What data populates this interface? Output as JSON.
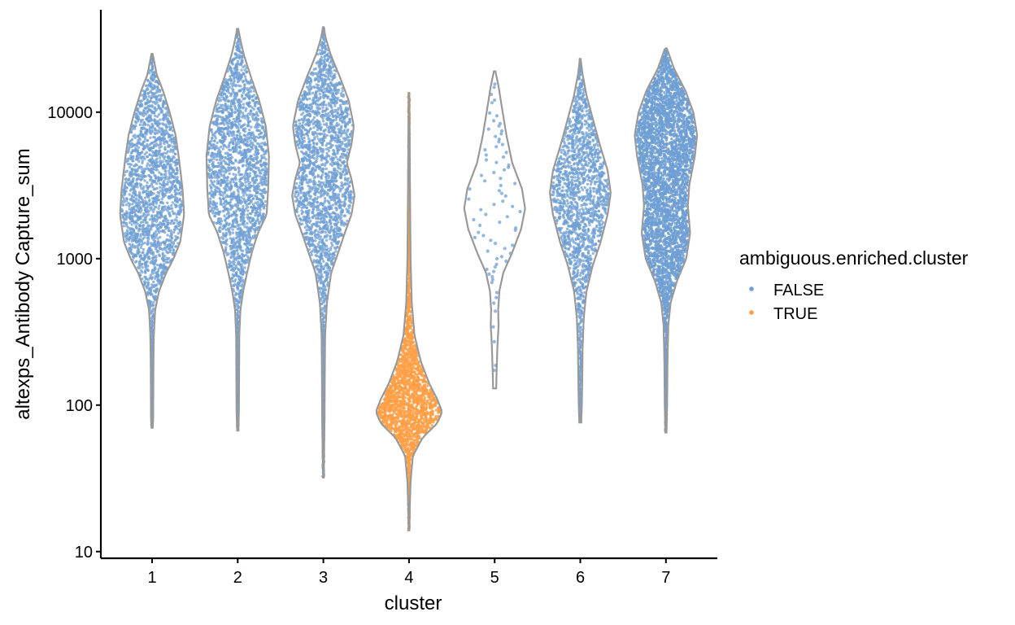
{
  "chart_data": {
    "type": "violin",
    "xlabel": "cluster",
    "ylabel": "altexps_Antibody Capture_sum",
    "y_scale": "log10",
    "ylim": [
      9,
      50000
    ],
    "y_ticks": [
      10,
      100,
      1000,
      10000
    ],
    "y_tick_labels": [
      "10",
      "100",
      "1000",
      "10000"
    ],
    "categories": [
      "1",
      "2",
      "3",
      "4",
      "5",
      "6",
      "7"
    ],
    "legend": {
      "title": "ambiguous.enriched.cluster",
      "placement": "right",
      "entries": [
        {
          "label": "FALSE",
          "color": "#6f9fd4"
        },
        {
          "label": "TRUE",
          "color": "#ff9f45"
        }
      ]
    },
    "violins": [
      {
        "cluster": "1",
        "group": "FALSE",
        "min": 70,
        "max": 25000,
        "profile": [
          [
            70,
            0.015
          ],
          [
            85,
            0.03
          ],
          [
            110,
            0.03
          ],
          [
            200,
            0.035
          ],
          [
            300,
            0.045
          ],
          [
            450,
            0.08
          ],
          [
            600,
            0.18
          ],
          [
            800,
            0.36
          ],
          [
            1000,
            0.55
          ],
          [
            1300,
            0.72
          ],
          [
            2000,
            0.82
          ],
          [
            3000,
            0.78
          ],
          [
            5000,
            0.68
          ],
          [
            7000,
            0.6
          ],
          [
            10000,
            0.45
          ],
          [
            14000,
            0.28
          ],
          [
            18000,
            0.12
          ],
          [
            25000,
            0.015
          ]
        ]
      },
      {
        "cluster": "2",
        "group": "FALSE",
        "min": 67,
        "max": 37000,
        "profile": [
          [
            67,
            0.015
          ],
          [
            90,
            0.03
          ],
          [
            150,
            0.035
          ],
          [
            300,
            0.04
          ],
          [
            450,
            0.07
          ],
          [
            600,
            0.14
          ],
          [
            800,
            0.24
          ],
          [
            1100,
            0.36
          ],
          [
            1500,
            0.52
          ],
          [
            2000,
            0.74
          ],
          [
            3000,
            0.78
          ],
          [
            5000,
            0.8
          ],
          [
            8000,
            0.72
          ],
          [
            12000,
            0.55
          ],
          [
            17000,
            0.35
          ],
          [
            25000,
            0.15
          ],
          [
            32000,
            0.06
          ],
          [
            37000,
            0.015
          ]
        ]
      },
      {
        "cluster": "3",
        "group": "FALSE",
        "min": 32,
        "max": 38000,
        "profile": [
          [
            32,
            0.01
          ],
          [
            50,
            0.02
          ],
          [
            80,
            0.03
          ],
          [
            150,
            0.035
          ],
          [
            300,
            0.045
          ],
          [
            500,
            0.09
          ],
          [
            800,
            0.2
          ],
          [
            1100,
            0.38
          ],
          [
            1500,
            0.55
          ],
          [
            2000,
            0.72
          ],
          [
            2700,
            0.8
          ],
          [
            3500,
            0.72
          ],
          [
            4500,
            0.6
          ],
          [
            6000,
            0.72
          ],
          [
            8000,
            0.78
          ],
          [
            12000,
            0.65
          ],
          [
            18000,
            0.4
          ],
          [
            25000,
            0.18
          ],
          [
            32000,
            0.06
          ],
          [
            38000,
            0.01
          ]
        ]
      },
      {
        "cluster": "4",
        "group": "TRUE",
        "min": 14,
        "max": 13500,
        "profile": [
          [
            14,
            0.01
          ],
          [
            20,
            0.02
          ],
          [
            30,
            0.04
          ],
          [
            45,
            0.1
          ],
          [
            60,
            0.35
          ],
          [
            75,
            0.72
          ],
          [
            90,
            0.85
          ],
          [
            110,
            0.72
          ],
          [
            140,
            0.52
          ],
          [
            200,
            0.3
          ],
          [
            300,
            0.14
          ],
          [
            500,
            0.07
          ],
          [
            1000,
            0.04
          ],
          [
            3000,
            0.025
          ],
          [
            8000,
            0.015
          ],
          [
            13500,
            0.008
          ]
        ]
      },
      {
        "cluster": "5",
        "group": "FALSE",
        "min": 130,
        "max": 19000,
        "profile": [
          [
            130,
            0.04
          ],
          [
            170,
            0.05
          ],
          [
            250,
            0.07
          ],
          [
            350,
            0.1
          ],
          [
            450,
            0.09
          ],
          [
            600,
            0.12
          ],
          [
            800,
            0.22
          ],
          [
            1100,
            0.45
          ],
          [
            1600,
            0.68
          ],
          [
            2200,
            0.78
          ],
          [
            3000,
            0.7
          ],
          [
            4500,
            0.45
          ],
          [
            7000,
            0.3
          ],
          [
            11000,
            0.18
          ],
          [
            15000,
            0.1
          ],
          [
            19000,
            0.02
          ]
        ]
      },
      {
        "cluster": "6",
        "group": "FALSE",
        "min": 76,
        "max": 23000,
        "profile": [
          [
            76,
            0.025
          ],
          [
            100,
            0.04
          ],
          [
            150,
            0.05
          ],
          [
            250,
            0.06
          ],
          [
            400,
            0.09
          ],
          [
            600,
            0.16
          ],
          [
            900,
            0.32
          ],
          [
            1300,
            0.52
          ],
          [
            2000,
            0.7
          ],
          [
            2800,
            0.78
          ],
          [
            4000,
            0.7
          ],
          [
            6000,
            0.5
          ],
          [
            9000,
            0.32
          ],
          [
            13000,
            0.16
          ],
          [
            18000,
            0.06
          ],
          [
            23000,
            0.01
          ]
        ]
      },
      {
        "cluster": "7",
        "group": "FALSE",
        "min": 65,
        "max": 27000,
        "profile": [
          [
            65,
            0.015
          ],
          [
            100,
            0.03
          ],
          [
            200,
            0.04
          ],
          [
            350,
            0.06
          ],
          [
            500,
            0.12
          ],
          [
            700,
            0.28
          ],
          [
            1000,
            0.52
          ],
          [
            1500,
            0.62
          ],
          [
            2300,
            0.56
          ],
          [
            3200,
            0.6
          ],
          [
            5000,
            0.74
          ],
          [
            7000,
            0.8
          ],
          [
            10000,
            0.7
          ],
          [
            14000,
            0.5
          ],
          [
            20000,
            0.2
          ],
          [
            27000,
            0.03
          ]
        ]
      }
    ]
  }
}
